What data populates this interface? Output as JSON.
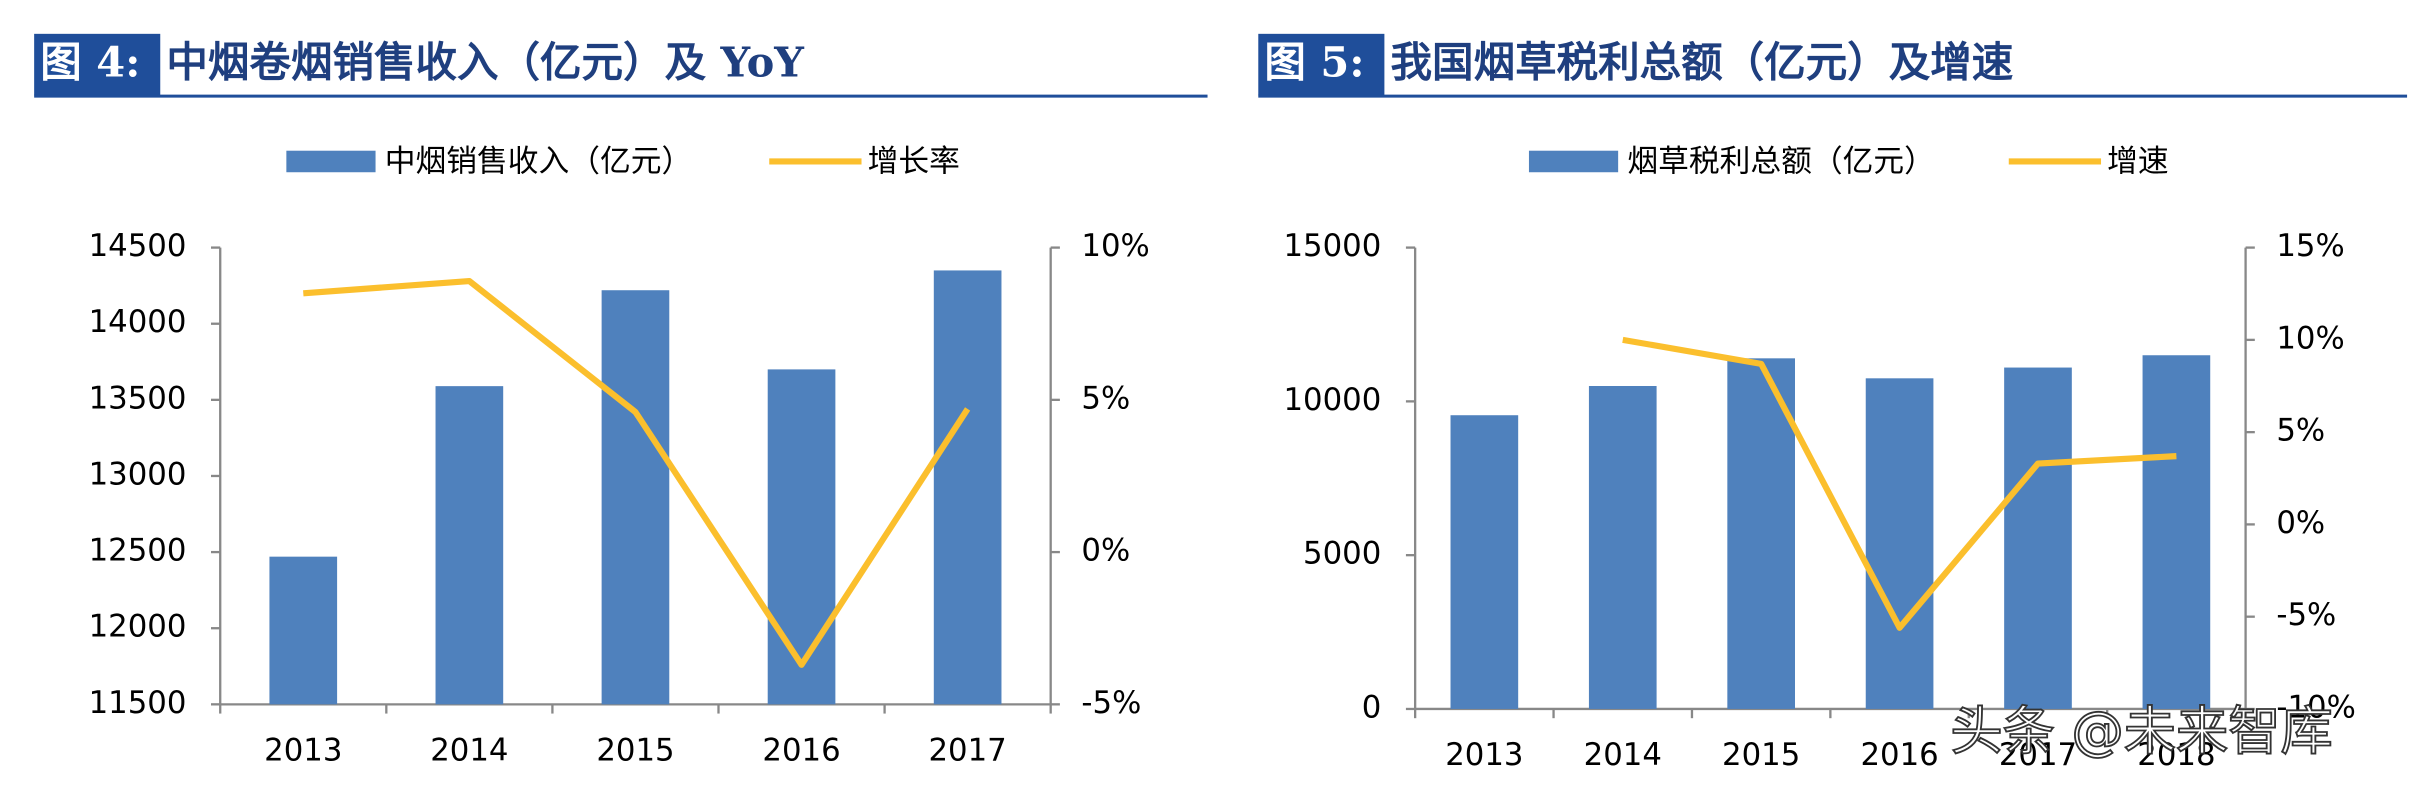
{
  "chart_data": [
    {
      "type": "bar",
      "figure_label": "图 4:",
      "title": "中烟卷烟销售收入（亿元）及 YoY",
      "categories": [
        "2013",
        "2014",
        "2015",
        "2016",
        "2017"
      ],
      "series": [
        {
          "name": "中烟销售收入（亿元）",
          "color": "#4f81bd",
          "type": "bar",
          "values": [
            12470,
            13590,
            14220,
            13700,
            14350
          ]
        },
        {
          "name": "增长率",
          "color": "#fbbf2d",
          "type": "line",
          "axis": "y2",
          "values": [
            8.5,
            8.9,
            4.6,
            -3.7,
            4.7
          ]
        }
      ],
      "ylim": [
        11500,
        14500
      ],
      "yticks": [
        11500,
        12000,
        12500,
        13000,
        13500,
        14000,
        14500
      ],
      "y2lim": [
        -5,
        10
      ],
      "y2ticks": [
        {
          "value": -5,
          "label": "-5%"
        },
        {
          "value": 0,
          "label": "0%"
        },
        {
          "value": 5,
          "label": "5%"
        },
        {
          "value": 10,
          "label": "10%"
        }
      ],
      "legend": "top",
      "grid": false
    },
    {
      "type": "bar",
      "figure_label": "图 5:",
      "title": "我国烟草税利总额（亿元）及增速",
      "categories": [
        "2013",
        "2014",
        "2015",
        "2016",
        "2017",
        "2018"
      ],
      "series": [
        {
          "name": "烟草税利总额（亿元）",
          "color": "#4f81bd",
          "type": "bar",
          "values": [
            9550,
            10500,
            11400,
            10750,
            11100,
            11500
          ]
        },
        {
          "name": "增速",
          "color": "#fbbf2d",
          "type": "line",
          "axis": "y2",
          "values": [
            null,
            10,
            8.7,
            -5.6,
            3.3,
            3.7
          ]
        }
      ],
      "ylim": [
        0,
        15000
      ],
      "yticks": [
        0,
        5000,
        10000,
        15000
      ],
      "y2lim": [
        -10,
        15
      ],
      "y2ticks": [
        {
          "value": -10,
          "label": "-10%"
        },
        {
          "value": -5,
          "label": "-5%"
        },
        {
          "value": 0,
          "label": "0%"
        },
        {
          "value": 5,
          "label": "5%"
        },
        {
          "value": 10,
          "label": "10%"
        },
        {
          "value": 15,
          "label": "15%"
        }
      ],
      "legend": "top",
      "grid": false
    }
  ],
  "watermark": "头条 @未来智库"
}
